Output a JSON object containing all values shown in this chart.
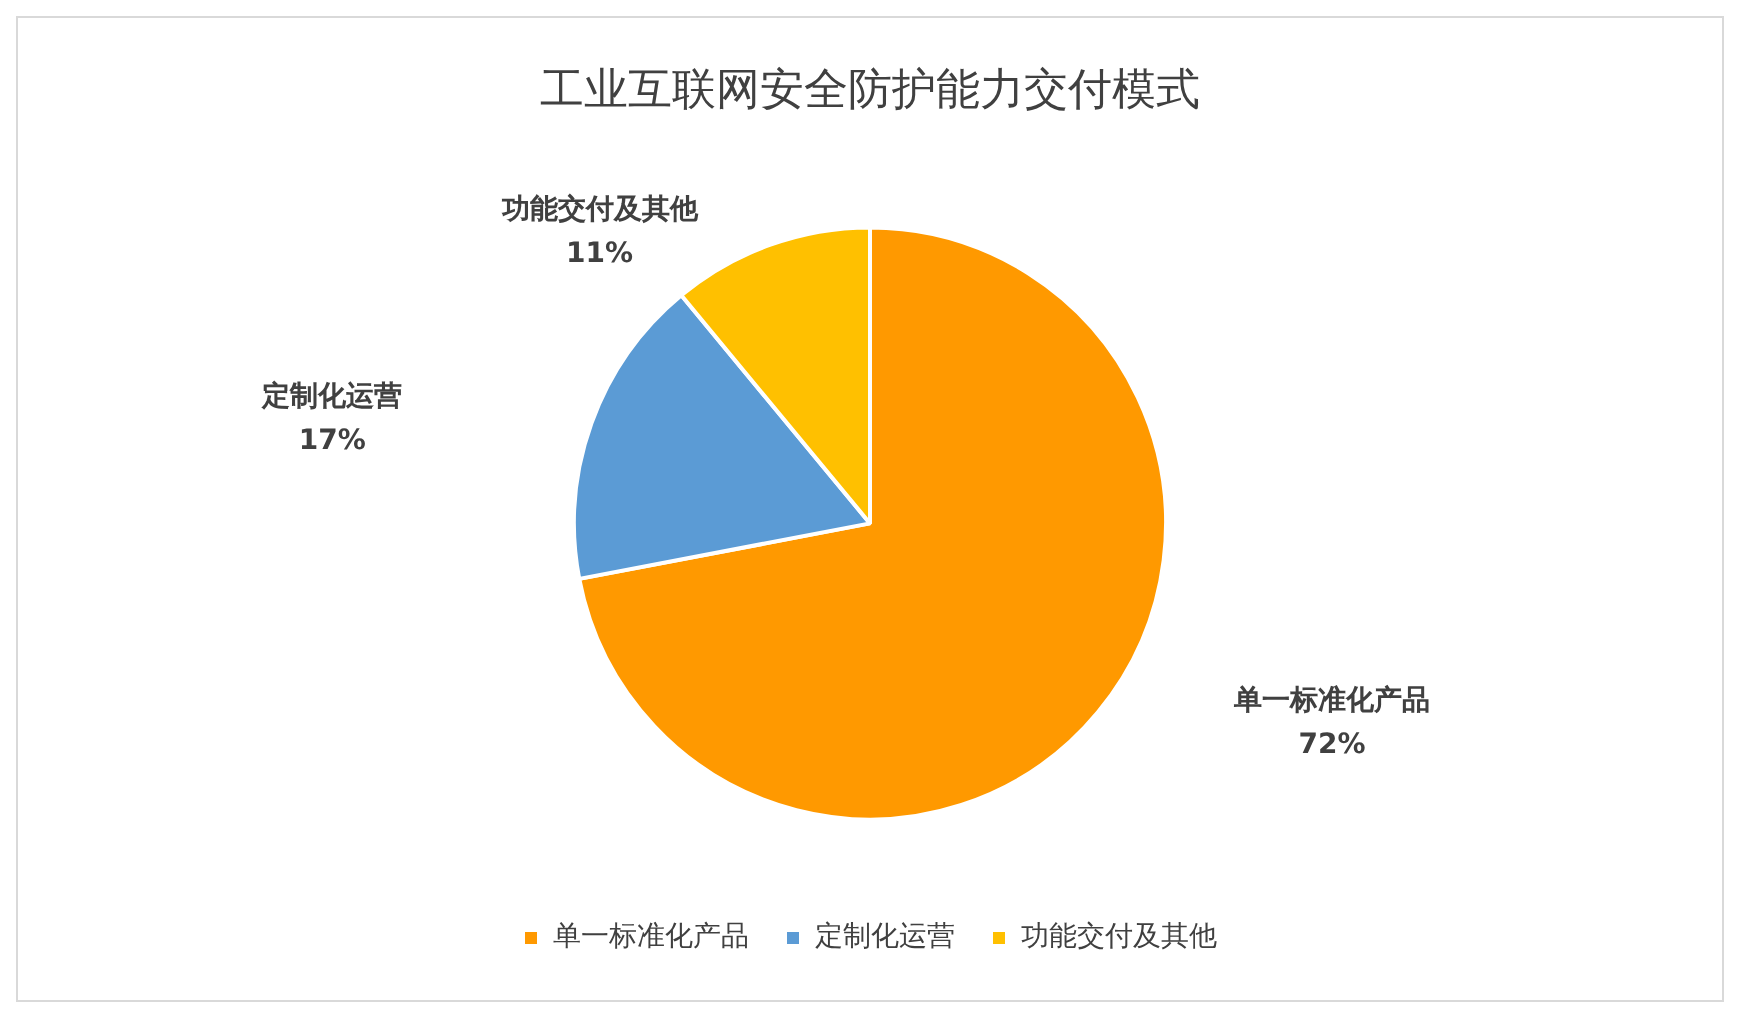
{
  "chart_data": {
    "type": "pie",
    "title": "工业互联网安全防护能力交付模式",
    "categories": [
      "单一标准化产品",
      "定制化运营",
      "功能交付及其他"
    ],
    "values": [
      72,
      17,
      11
    ],
    "colors": [
      "#ff9900",
      "#5b9bd5",
      "#ffc000"
    ],
    "value_labels": [
      "72%",
      "17%",
      "11%"
    ],
    "legend": "bottom"
  }
}
